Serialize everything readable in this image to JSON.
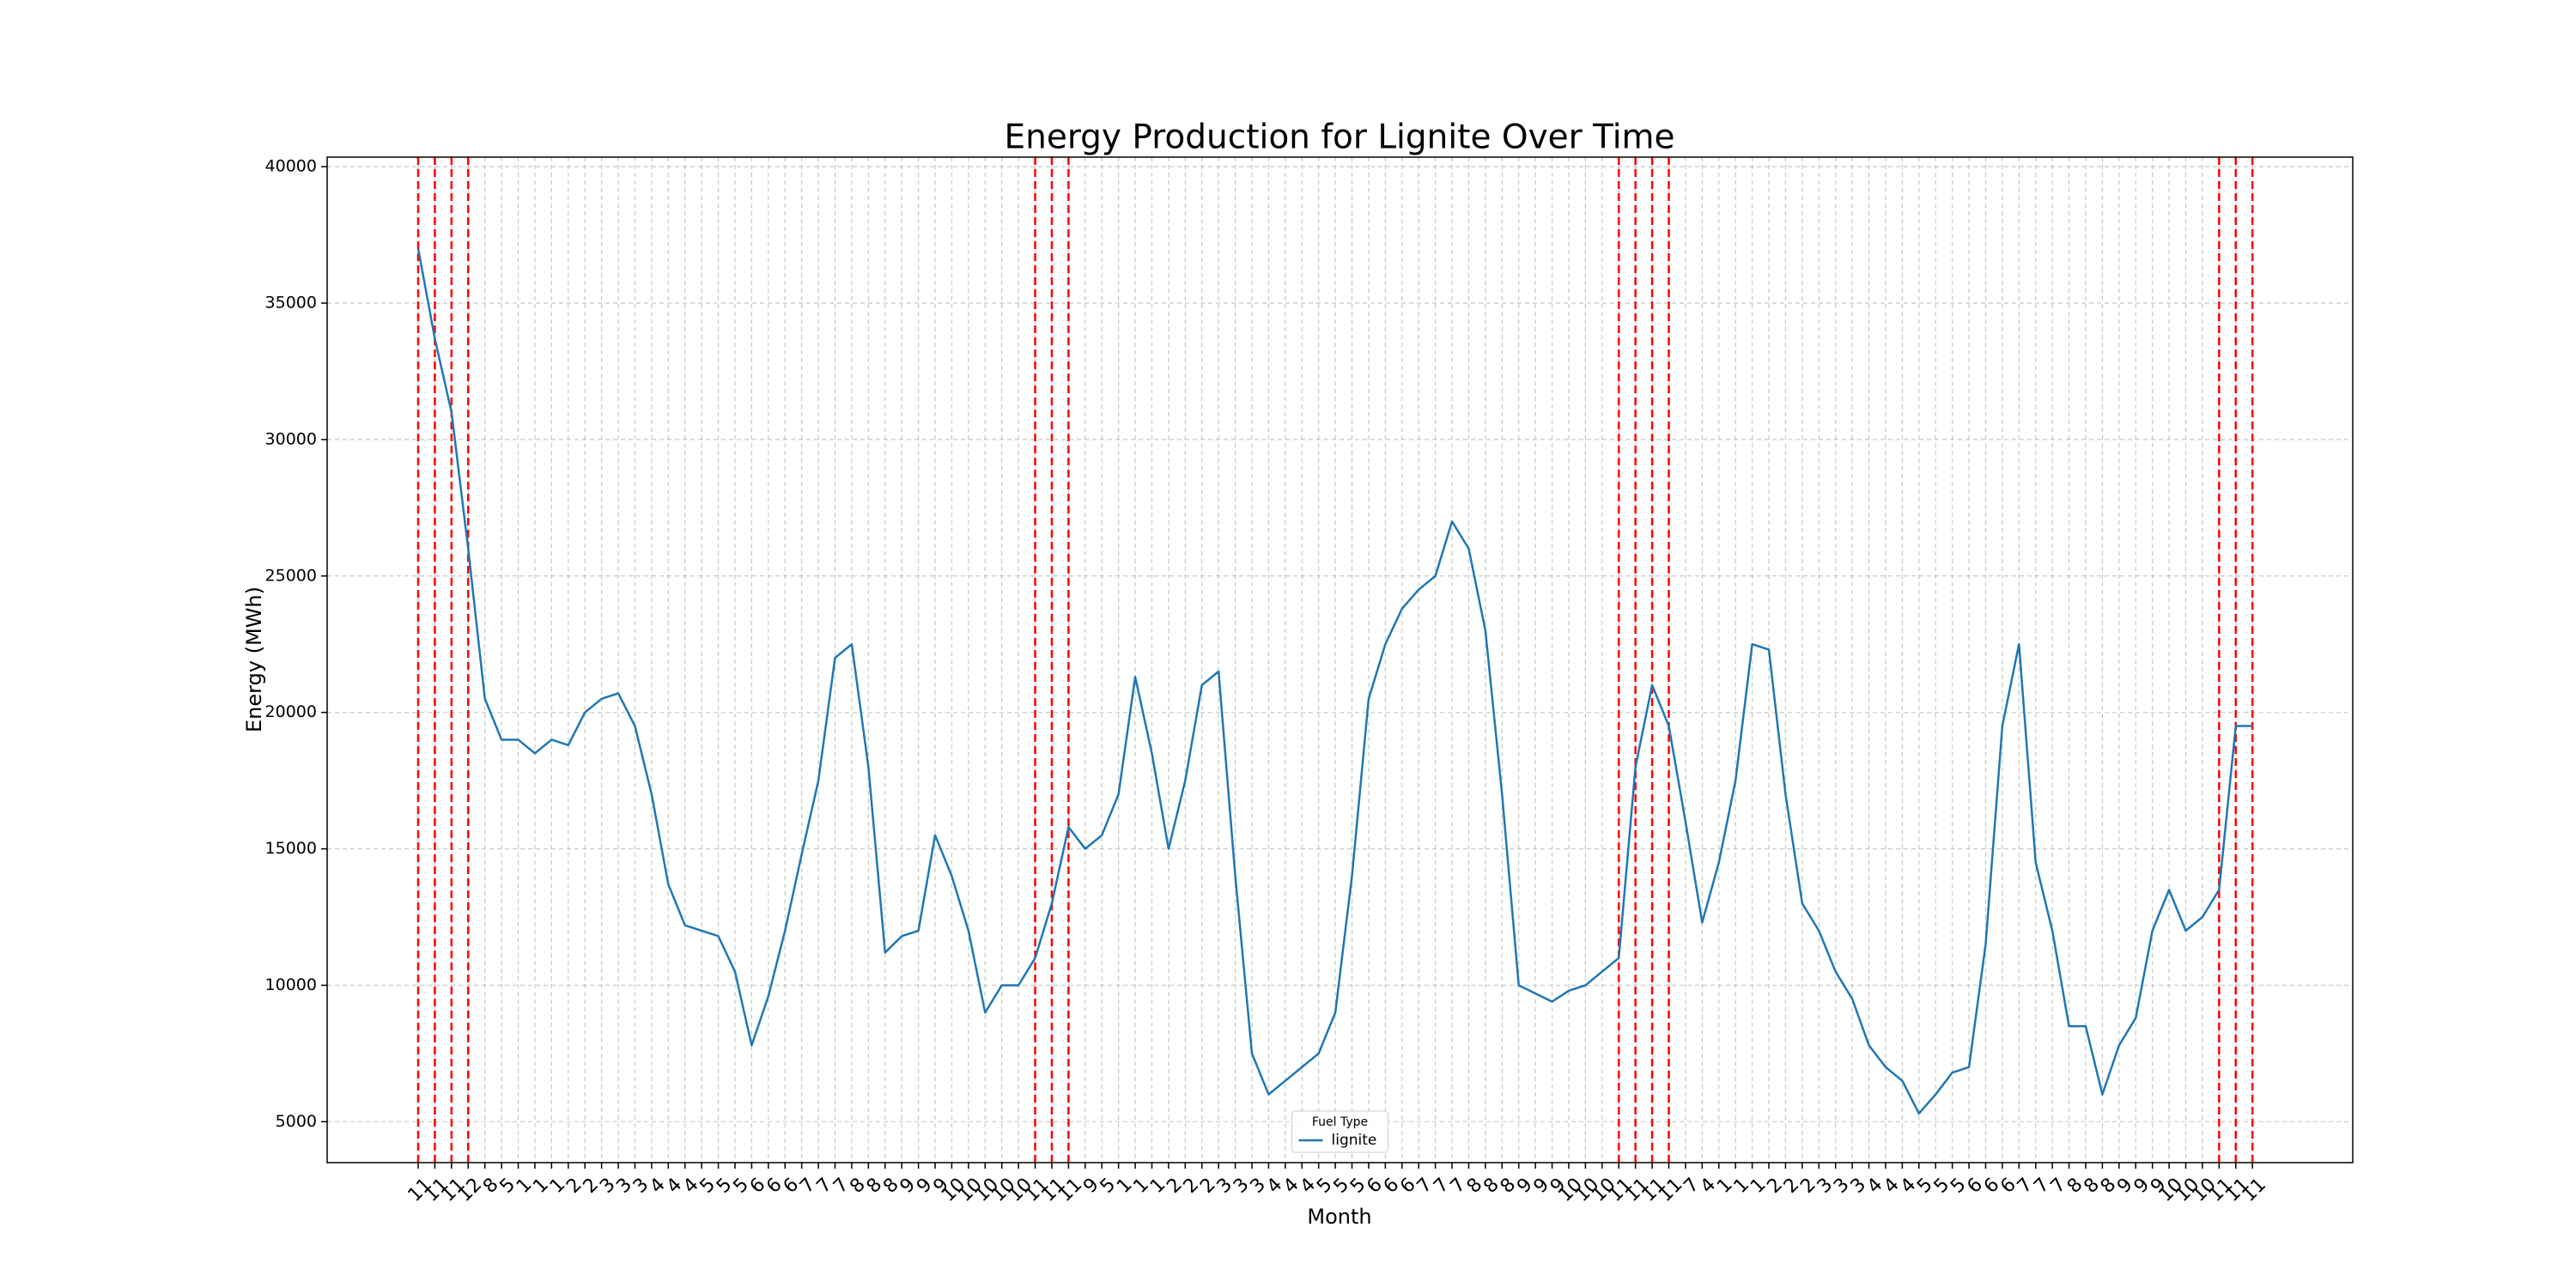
{
  "chart_data": {
    "type": "line",
    "title": "Energy Production for Lignite Over Time",
    "x_label": "Month",
    "y_label": "Energy (MWh)",
    "legend_title": "Fuel Type",
    "legend": "lower center",
    "grid": true,
    "categories": [
      "11",
      "11",
      "11",
      "12",
      "8",
      "5",
      "1",
      "1",
      "1",
      "2",
      "2",
      "3",
      "3",
      "3",
      "4",
      "4",
      "4",
      "5",
      "5",
      "5",
      "6",
      "6",
      "6",
      "7",
      "7",
      "7",
      "8",
      "8",
      "8",
      "9",
      "9",
      "9",
      "10",
      "10",
      "10",
      "10",
      "10",
      "11",
      "11",
      "11",
      "9",
      "5",
      "1",
      "1",
      "1",
      "2",
      "2",
      "2",
      "3",
      "3",
      "3",
      "4",
      "4",
      "4",
      "5",
      "5",
      "5",
      "6",
      "6",
      "6",
      "7",
      "7",
      "7",
      "8",
      "8",
      "8",
      "9",
      "9",
      "9",
      "10",
      "10",
      "10",
      "11",
      "11",
      "11",
      "11",
      "7",
      "4",
      "1",
      "1",
      "1",
      "2",
      "2",
      "2",
      "3",
      "3",
      "3",
      "4",
      "4",
      "4",
      "5",
      "5",
      "5",
      "6",
      "6",
      "6",
      "7",
      "7",
      "7",
      "8",
      "8",
      "8",
      "9",
      "9",
      "9",
      "10",
      "10",
      "10",
      "11",
      "11",
      "11"
    ],
    "series": [
      {
        "name": "lignite",
        "color": "#1f77b4",
        "values": [
          37000,
          33700,
          31000,
          26000,
          20500,
          19000,
          19000,
          18500,
          19000,
          18800,
          20000,
          20500,
          20700,
          19500,
          17000,
          13700,
          12200,
          12000,
          11800,
          10500,
          7800,
          9600,
          12000,
          14800,
          17500,
          22000,
          22500,
          18000,
          11200,
          11800,
          12000,
          15500,
          14000,
          12000,
          9000,
          10000,
          10000,
          11000,
          13000,
          15800,
          15000,
          15500,
          17000,
          21300,
          18500,
          15000,
          17500,
          21000,
          21500,
          14000,
          7500,
          6000,
          6500,
          7000,
          7500,
          9000,
          14000,
          20500,
          22500,
          23800,
          24500,
          25000,
          27000,
          26000,
          23000,
          17000,
          10000,
          9700,
          9400,
          9800,
          10000,
          10500,
          11000,
          18000,
          21000,
          19500,
          16000,
          12300,
          14500,
          17500,
          22500,
          22300,
          17000,
          13000,
          12000,
          10500,
          9500,
          7800,
          7000,
          6500,
          5300,
          6000,
          6800,
          7000,
          11500,
          19500,
          22500,
          14500,
          12000,
          8500,
          8500,
          6000,
          7800,
          8800,
          12000,
          13500,
          12000,
          12500,
          13500,
          19500,
          19500
        ]
      }
    ],
    "highlight_indices": [
      0,
      1,
      2,
      3,
      37,
      38,
      39,
      72,
      73,
      74,
      75,
      108,
      109,
      110
    ],
    "highlight_color": "#ff0000",
    "ylim": [
      3500,
      40350
    ],
    "yticks": [
      5000,
      10000,
      15000,
      20000,
      25000,
      30000,
      35000,
      40000
    ]
  }
}
